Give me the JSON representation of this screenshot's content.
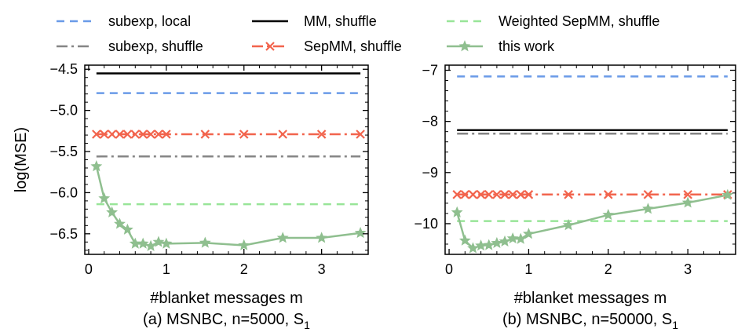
{
  "legend": [
    {
      "key": "subexp_local",
      "label": "subexp, local",
      "color": "#6a9be8",
      "dash": "10,7",
      "marker": "none"
    },
    {
      "key": "mm_shuffle",
      "label": "MM, shuffle",
      "color": "#000000",
      "dash": "",
      "marker": "none"
    },
    {
      "key": "wsepmm_shuffle",
      "label": "Weighted SepMM, shuffle",
      "color": "#98e598",
      "dash": "10,7",
      "marker": "none"
    },
    {
      "key": "subexp_shuffle",
      "label": "subexp, shuffle",
      "color": "#858585",
      "dash": "14,5,3,5",
      "marker": "none"
    },
    {
      "key": "sepmm_shuffle",
      "label": "SepMM, shuffle",
      "color": "#f2644d",
      "dash": "14,5,3,5",
      "marker": "x"
    },
    {
      "key": "this_work",
      "label": "this work",
      "color": "#8fbf8f",
      "dash": "",
      "marker": "star"
    }
  ],
  "chart_data": [
    {
      "type": "line",
      "title": "(a) MSNBC, n=5000, S",
      "title_sub": "1",
      "xlabel": "#blanket messages m",
      "ylabel": "log(MSE)",
      "xlim": [
        -0.05,
        3.6
      ],
      "ylim": [
        -6.75,
        -4.45
      ],
      "xticks": [
        0,
        1,
        2,
        3
      ],
      "xtick_labels": [
        "0",
        "1",
        "2",
        "3"
      ],
      "yticks": [
        -4.5,
        -5.0,
        -5.5,
        -6.0,
        -6.5
      ],
      "ytick_labels": [
        "−4.5",
        "−5.0",
        "−5.5",
        "−6.0",
        "−6.5"
      ],
      "series": [
        {
          "key": "mm_shuffle",
          "x": [
            0.1,
            3.5
          ],
          "y": [
            -4.55,
            -4.55
          ]
        },
        {
          "key": "subexp_local",
          "x": [
            0.1,
            3.5
          ],
          "y": [
            -4.79,
            -4.79
          ]
        },
        {
          "key": "sepmm_shuffle",
          "x": [
            0.1,
            0.2,
            0.3,
            0.4,
            0.5,
            0.6,
            0.7,
            0.8,
            0.9,
            1.0,
            1.5,
            2.0,
            2.5,
            3.0,
            3.5
          ],
          "y": [
            -5.29,
            -5.29,
            -5.29,
            -5.29,
            -5.29,
            -5.29,
            -5.29,
            -5.29,
            -5.29,
            -5.29,
            -5.29,
            -5.29,
            -5.29,
            -5.29,
            -5.29
          ]
        },
        {
          "key": "subexp_shuffle",
          "x": [
            0.1,
            3.5
          ],
          "y": [
            -5.56,
            -5.56
          ]
        },
        {
          "key": "wsepmm_shuffle",
          "x": [
            0.1,
            3.5
          ],
          "y": [
            -6.14,
            -6.14
          ]
        },
        {
          "key": "this_work",
          "x": [
            0.1,
            0.2,
            0.3,
            0.4,
            0.5,
            0.6,
            0.7,
            0.8,
            0.9,
            1.0,
            1.5,
            2.0,
            2.5,
            3.0,
            3.5
          ],
          "y": [
            -5.68,
            -6.07,
            -6.24,
            -6.38,
            -6.45,
            -6.62,
            -6.62,
            -6.65,
            -6.6,
            -6.62,
            -6.61,
            -6.64,
            -6.55,
            -6.55,
            -6.49
          ]
        }
      ]
    },
    {
      "type": "line",
      "title": "(b) MSNBC, n=50000, S",
      "title_sub": "1",
      "xlabel": "#blanket messages m",
      "ylabel": "",
      "xlim": [
        -0.05,
        3.6
      ],
      "ylim": [
        -10.6,
        -6.9
      ],
      "xticks": [
        0,
        1,
        2,
        3
      ],
      "xtick_labels": [
        "0",
        "1",
        "2",
        "3"
      ],
      "yticks": [
        -7,
        -8,
        -9,
        -10
      ],
      "ytick_labels": [
        "−7",
        "−8",
        "−9",
        "−10"
      ],
      "series": [
        {
          "key": "subexp_local",
          "x": [
            0.1,
            3.5
          ],
          "y": [
            -7.12,
            -7.12
          ]
        },
        {
          "key": "mm_shuffle",
          "x": [
            0.1,
            3.5
          ],
          "y": [
            -8.17,
            -8.17
          ]
        },
        {
          "key": "subexp_shuffle",
          "x": [
            0.1,
            3.5
          ],
          "y": [
            -8.24,
            -8.24
          ]
        },
        {
          "key": "sepmm_shuffle",
          "x": [
            0.1,
            0.2,
            0.3,
            0.4,
            0.5,
            0.6,
            0.7,
            0.8,
            0.9,
            1.0,
            1.5,
            2.0,
            2.5,
            3.0,
            3.5
          ],
          "y": [
            -9.43,
            -9.43,
            -9.43,
            -9.43,
            -9.43,
            -9.43,
            -9.43,
            -9.43,
            -9.43,
            -9.43,
            -9.43,
            -9.43,
            -9.43,
            -9.43,
            -9.43
          ]
        },
        {
          "key": "wsepmm_shuffle",
          "x": [
            0.1,
            3.5
          ],
          "y": [
            -9.95,
            -9.95
          ]
        },
        {
          "key": "this_work",
          "x": [
            0.1,
            0.2,
            0.3,
            0.4,
            0.5,
            0.6,
            0.7,
            0.8,
            0.9,
            1.0,
            1.5,
            2.0,
            2.5,
            3.0,
            3.5
          ],
          "y": [
            -9.78,
            -10.33,
            -10.48,
            -10.43,
            -10.42,
            -10.38,
            -10.35,
            -10.29,
            -10.3,
            -10.2,
            -10.03,
            -9.83,
            -9.71,
            -9.59,
            -9.44
          ]
        }
      ]
    }
  ]
}
